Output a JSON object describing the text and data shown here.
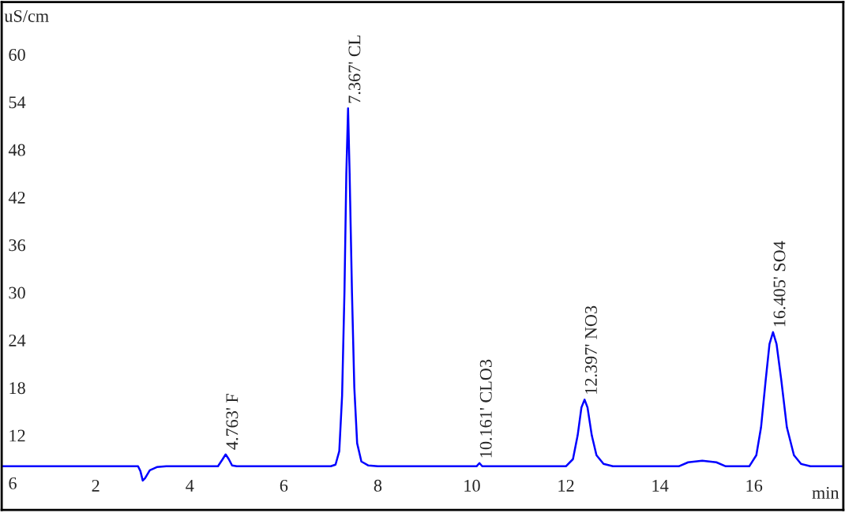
{
  "chart_data": {
    "type": "line",
    "xlabel": "min",
    "ylabel": "uS/cm",
    "x": [
      0.0,
      2.9,
      2.95,
      3.0,
      3.05,
      3.15,
      3.3,
      3.5,
      4.6,
      4.7,
      4.763,
      4.83,
      4.9,
      5.0,
      7.0,
      7.1,
      7.18,
      7.24,
      7.29,
      7.33,
      7.367,
      7.4,
      7.45,
      7.5,
      7.56,
      7.65,
      7.8,
      8.0,
      10.1,
      10.161,
      10.22,
      12.0,
      12.15,
      12.25,
      12.33,
      12.397,
      12.46,
      12.55,
      12.65,
      12.8,
      13.0,
      14.4,
      14.6,
      14.9,
      15.2,
      15.4,
      15.9,
      16.05,
      16.15,
      16.25,
      16.33,
      16.405,
      16.48,
      16.58,
      16.7,
      16.85,
      17.0,
      17.2,
      17.9
    ],
    "series": [
      {
        "color": "#0000ff",
        "values": [
          8.1,
          8.1,
          7.5,
          6.3,
          6.6,
          7.6,
          8.0,
          8.1,
          8.1,
          9.0,
          9.6,
          9.0,
          8.2,
          8.1,
          8.1,
          8.3,
          10,
          17,
          30,
          45,
          53.2,
          45,
          30,
          18,
          11,
          8.7,
          8.2,
          8.1,
          8.1,
          8.5,
          8.1,
          8.1,
          9.0,
          12,
          15.5,
          16.5,
          15.5,
          12,
          9.5,
          8.4,
          8.1,
          8.1,
          8.6,
          8.8,
          8.6,
          8.1,
          8.1,
          9.5,
          13,
          19,
          23.5,
          25.0,
          23.5,
          19,
          13,
          9.5,
          8.4,
          8.1,
          8.1
        ]
      }
    ],
    "xlim": [
      0.0,
      17.9
    ],
    "ylim": [
      2.6,
      66.6
    ],
    "xticks": [
      2,
      4,
      6,
      8,
      10,
      12,
      14,
      16
    ],
    "yticks": [
      6,
      12,
      18,
      24,
      30,
      36,
      42,
      48,
      54,
      60
    ],
    "grid": false,
    "marker": "none",
    "line_style": "solid",
    "annotations": [
      {
        "text": "4.763' F",
        "x": 4.763,
        "y": 9.6
      },
      {
        "text": "7.367' CL",
        "x": 7.367,
        "y": 53.2
      },
      {
        "text": "10.161' CLO3",
        "x": 10.161,
        "y": 8.5
      },
      {
        "text": "12.397' NO3",
        "x": 12.397,
        "y": 16.5
      },
      {
        "text": "16.405' SO4",
        "x": 16.405,
        "y": 25.0
      }
    ]
  }
}
